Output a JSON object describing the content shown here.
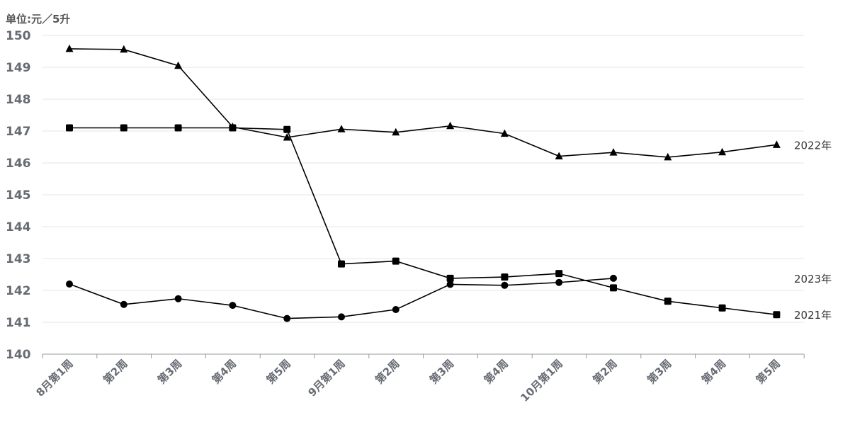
{
  "chart_data": {
    "type": "line",
    "unit_label": "单位:元／5升",
    "ylim": [
      140,
      150
    ],
    "yticks": [
      140,
      141,
      142,
      143,
      144,
      145,
      146,
      147,
      148,
      149,
      150
    ],
    "categories": [
      "8月第1周",
      "第2周",
      "第3周",
      "第4周",
      "第5周",
      "9月第1周",
      "第2周",
      "第3周",
      "第4周",
      "10月第1周",
      "第2周",
      "第3周",
      "第4周",
      "第5周"
    ],
    "grid": true,
    "series": [
      {
        "name": "2022年",
        "marker": "triangle",
        "values": [
          149.58,
          149.56,
          149.05,
          147.13,
          146.8,
          147.06,
          146.96,
          147.16,
          146.92,
          146.21,
          146.33,
          146.18,
          146.34,
          146.57
        ]
      },
      {
        "name": "2023年",
        "marker": "square",
        "values": [
          147.1,
          147.1,
          147.1,
          147.1,
          147.05,
          142.83,
          142.92,
          142.38,
          142.42,
          142.53,
          142.08,
          141.66,
          141.45,
          141.24
        ]
      },
      {
        "name": "2021年",
        "marker": "circle",
        "values": [
          142.2,
          141.56,
          141.74,
          141.53,
          141.12,
          141.17,
          141.4,
          142.19,
          142.16,
          142.25,
          142.38,
          null,
          null,
          null
        ]
      }
    ],
    "colors": {
      "line": "#000000",
      "grid": "#e6e6e6",
      "tick_text": "#666a72"
    }
  }
}
